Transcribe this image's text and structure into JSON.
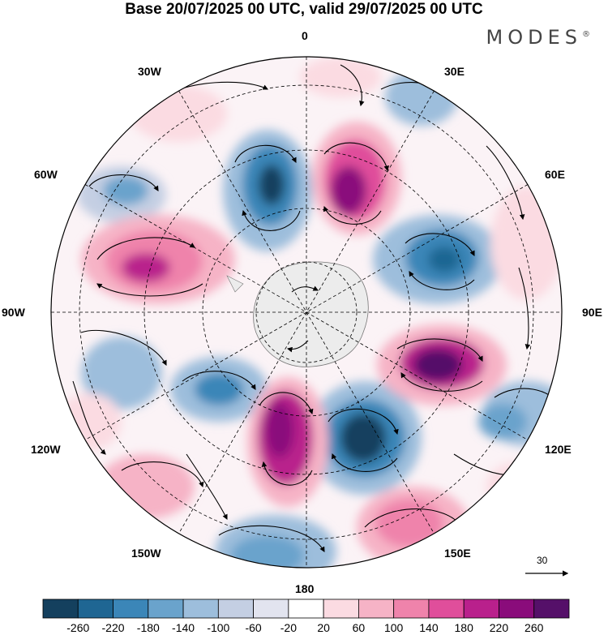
{
  "title": "Base 20/07/2025 00 UTC, valid 29/07/2025 00 UTC",
  "brand": "MODES",
  "brand_mark": "®",
  "longitude_labels": {
    "lon_0": "0",
    "lon_30e": "30E",
    "lon_60e": "60E",
    "lon_90e": "90E",
    "lon_120e": "120E",
    "lon_150e": "150E",
    "lon_180": "180",
    "lon_150w": "150W",
    "lon_120w": "120W",
    "lon_90w": "90W",
    "lon_60w": "60W",
    "lon_30w": "30W"
  },
  "vector_reference": {
    "label": "30"
  },
  "colorbar": {
    "labels": [
      "-260",
      "-220",
      "-180",
      "-140",
      "-100",
      "-60",
      "-20",
      "20",
      "60",
      "100",
      "140",
      "180",
      "220",
      "260"
    ],
    "colors": [
      "#14405e",
      "#1f6693",
      "#3b86b8",
      "#6aa3cc",
      "#9dbedc",
      "#c4cfe3",
      "#e2e4ef",
      "#ffffff",
      "#fbdbe2",
      "#f6b3c6",
      "#ef83ab",
      "#e04e9b",
      "#b9208c",
      "#8a0c7b",
      "#551069"
    ]
  },
  "colors": {
    "antarctica": "#ececec",
    "grid": "#000000"
  }
}
